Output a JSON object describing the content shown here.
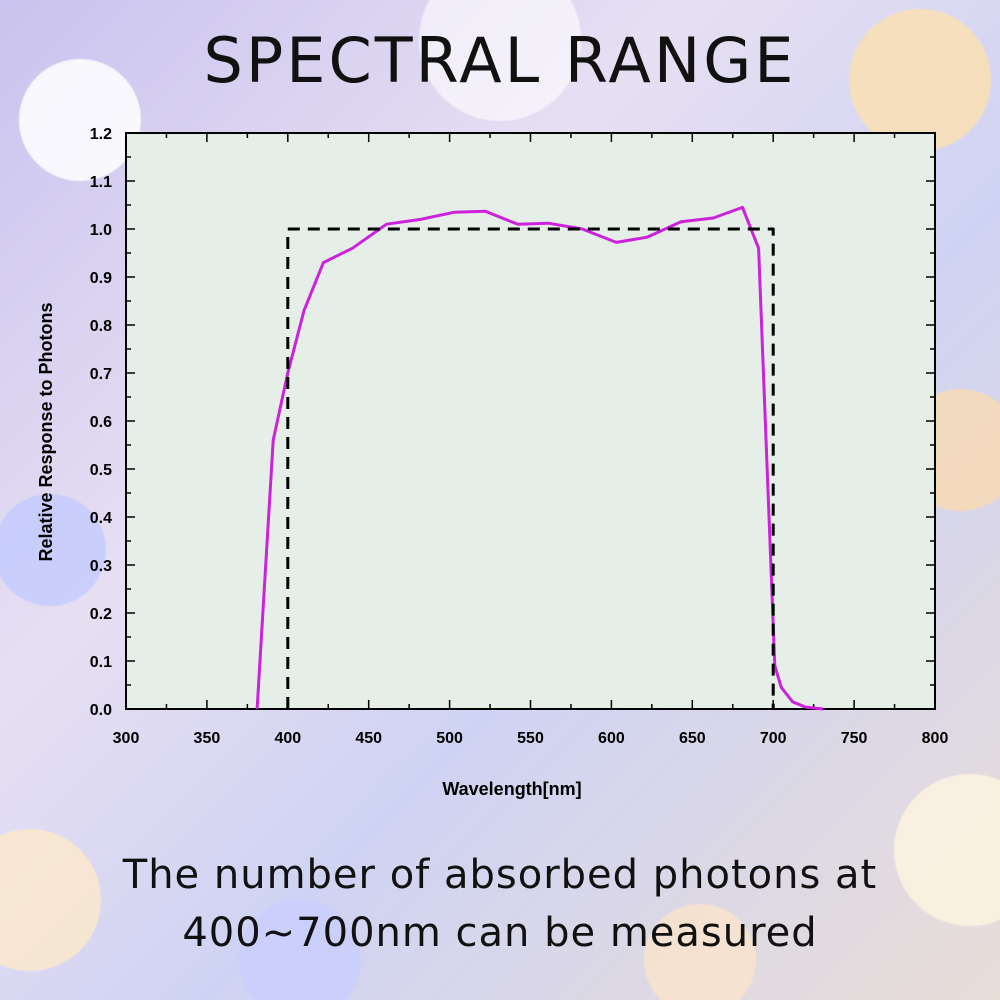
{
  "page": {
    "title": "SPECTRAL RANGE",
    "caption_lines": [
      "The number of absorbed photons at",
      "400~700nm can be measured"
    ]
  },
  "chart_data": {
    "type": "line",
    "xlabel": "Wavelength[nm]",
    "ylabel": "Relative Response to Photons",
    "xlim": [
      300,
      800
    ],
    "ylim": [
      0,
      1.2
    ],
    "x_ticks": [
      300,
      350,
      400,
      450,
      500,
      550,
      600,
      650,
      700,
      750,
      800
    ],
    "y_ticks": [
      0.0,
      0.1,
      0.2,
      0.3,
      0.4,
      0.5,
      0.6,
      0.7,
      0.8,
      0.9,
      1.0,
      1.1,
      1.2
    ],
    "grid": false,
    "series": [
      {
        "style": "solid",
        "color": "#cc22dd",
        "x": [
          381,
          391,
          400,
          410,
          422,
          440,
          461,
          482,
          503,
          522,
          542,
          561,
          582,
          603,
          622,
          643,
          663,
          681,
          691,
          701,
          705,
          712,
          720,
          731
        ],
        "y": [
          0.0,
          0.56,
          0.7,
          0.83,
          0.93,
          0.96,
          1.01,
          1.02,
          1.035,
          1.037,
          1.01,
          1.012,
          1.0,
          0.972,
          0.983,
          1.015,
          1.023,
          1.045,
          0.96,
          0.09,
          0.045,
          0.015,
          0.004,
          0.0
        ]
      },
      {
        "style": "dashed",
        "color": "#000000",
        "x": [
          400,
          400,
          700,
          700
        ],
        "y": [
          0.0,
          1.0,
          1.0,
          0.0
        ]
      }
    ]
  }
}
